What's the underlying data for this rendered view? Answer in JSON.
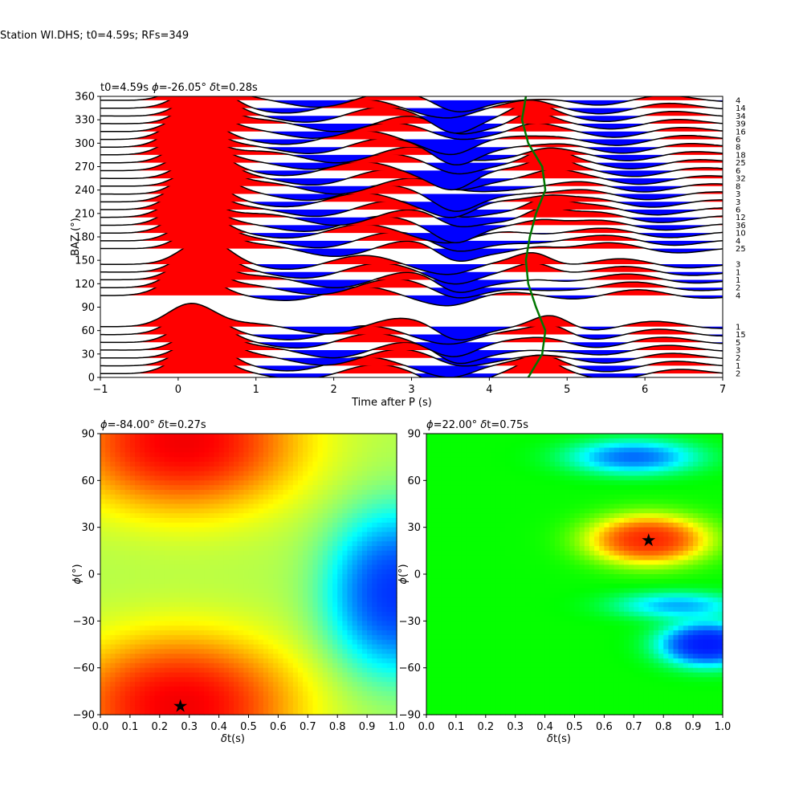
{
  "figure": {
    "title": "Station WI.DHS; t0=4.59s; RFs=349"
  },
  "chart_data": [
    {
      "type": "line",
      "panel": "receiver-functions",
      "title_text": "t0=4.59s ",
      "title_phi": "=-26.05° ",
      "title_dt": "t=0.28s",
      "xlabel": "Time after P (s)",
      "ylabel": "BAZ (°)",
      "xlim": [
        -1,
        7
      ],
      "ylim": [
        0,
        360
      ],
      "xticks": [
        -1,
        0,
        1,
        2,
        3,
        4,
        5,
        6,
        7
      ],
      "yticks": [
        0,
        30,
        60,
        90,
        120,
        150,
        180,
        210,
        240,
        270,
        300,
        330,
        360
      ],
      "fill_positive": "#ff0000",
      "fill_negative": "#0000ff",
      "trace_color": "#000000",
      "curve_color": "#007700",
      "bins": [
        {
          "baz": 5,
          "count": "2"
        },
        {
          "baz": 15,
          "count": "1"
        },
        {
          "baz": 25,
          "count": "2"
        },
        {
          "baz": 35,
          "count": "3"
        },
        {
          "baz": 45,
          "count": "5"
        },
        {
          "baz": 55,
          "count": "15"
        },
        {
          "baz": 65,
          "count": "1"
        },
        {
          "baz": 105,
          "count": "4"
        },
        {
          "baz": 115,
          "count": "2"
        },
        {
          "baz": 125,
          "count": "1"
        },
        {
          "baz": 135,
          "count": "1"
        },
        {
          "baz": 145,
          "count": "3"
        },
        {
          "baz": 165,
          "count": "25"
        },
        {
          "baz": 175,
          "count": "4"
        },
        {
          "baz": 185,
          "count": "10"
        },
        {
          "baz": 195,
          "count": "36"
        },
        {
          "baz": 205,
          "count": "12"
        },
        {
          "baz": 215,
          "count": "6"
        },
        {
          "baz": 225,
          "count": "3"
        },
        {
          "baz": 235,
          "count": "3"
        },
        {
          "baz": 245,
          "count": "8"
        },
        {
          "baz": 255,
          "count": "32"
        },
        {
          "baz": 265,
          "count": "6"
        },
        {
          "baz": 275,
          "count": "25"
        },
        {
          "baz": 285,
          "count": "18"
        },
        {
          "baz": 295,
          "count": "8"
        },
        {
          "baz": 305,
          "count": "6"
        },
        {
          "baz": 315,
          "count": "16"
        },
        {
          "baz": 325,
          "count": "39"
        },
        {
          "baz": 335,
          "count": "34"
        },
        {
          "baz": 345,
          "count": "14"
        },
        {
          "baz": 355,
          "count": "4"
        }
      ],
      "pulse_t0": 0.25,
      "pulse_amplitude_bazunits": 30,
      "ps_curve": [
        {
          "baz": 0,
          "t": 4.5
        },
        {
          "baz": 30,
          "t": 4.68
        },
        {
          "baz": 60,
          "t": 4.72
        },
        {
          "baz": 90,
          "t": 4.6
        },
        {
          "baz": 120,
          "t": 4.5
        },
        {
          "baz": 150,
          "t": 4.47
        },
        {
          "baz": 180,
          "t": 4.52
        },
        {
          "baz": 210,
          "t": 4.6
        },
        {
          "baz": 240,
          "t": 4.72
        },
        {
          "baz": 270,
          "t": 4.68
        },
        {
          "baz": 300,
          "t": 4.5
        },
        {
          "baz": 330,
          "t": 4.42
        },
        {
          "baz": 360,
          "t": 4.47
        }
      ]
    },
    {
      "type": "heatmap",
      "panel": "grid-search-left",
      "title_phi": "=-84.00° ",
      "title_dt": "t=0.27s",
      "xlabel": "t(s)",
      "ylabel": "(°)",
      "xlim": [
        0,
        1
      ],
      "ylim": [
        -90,
        90
      ],
      "xticks": [
        "0.0",
        "0.1",
        "0.2",
        "0.3",
        "0.4",
        "0.5",
        "0.6",
        "0.7",
        "0.8",
        "0.9",
        "1.0"
      ],
      "yticks": [
        -90,
        -60,
        -30,
        0,
        30,
        60,
        90
      ],
      "colormap": "jet",
      "best": {
        "dt": 0.27,
        "phi": -84
      },
      "peaks": [
        {
          "dt": 0.27,
          "phi": -84,
          "sx": 0.35,
          "sy": 40,
          "amp": 1.0
        },
        {
          "dt": 0.28,
          "phi": 85,
          "sx": 0.35,
          "sy": 40,
          "amp": 1.0
        },
        {
          "dt": 1.0,
          "phi": -12,
          "sx": 0.2,
          "sy": 45,
          "amp": -1.3
        }
      ]
    },
    {
      "type": "heatmap",
      "panel": "grid-search-right",
      "title_phi": "=22.00° ",
      "title_dt": "t=0.75s",
      "xlabel": "t(s)",
      "ylabel": "(°)",
      "xlim": [
        0,
        1
      ],
      "ylim": [
        -90,
        90
      ],
      "xticks": [
        "0.0",
        "0.1",
        "0.2",
        "0.3",
        "0.4",
        "0.5",
        "0.6",
        "0.7",
        "0.8",
        "0.9",
        "1.0"
      ],
      "yticks": [
        -90,
        -60,
        -30,
        0,
        30,
        60,
        90
      ],
      "colormap": "hsv",
      "best": {
        "dt": 0.75,
        "phi": 22
      },
      "peaks": [
        {
          "dt": 0.75,
          "phi": 22,
          "sx": 0.18,
          "sy": 14,
          "amp": 1.0
        },
        {
          "dt": 0.95,
          "phi": -45,
          "sx": 0.14,
          "sy": 12,
          "amp": -1.3
        },
        {
          "dt": 0.7,
          "phi": 75,
          "sx": 0.2,
          "sy": 10,
          "amp": -0.7
        },
        {
          "dt": 0.85,
          "phi": -20,
          "sx": 0.2,
          "sy": 8,
          "amp": -0.5
        }
      ]
    }
  ]
}
